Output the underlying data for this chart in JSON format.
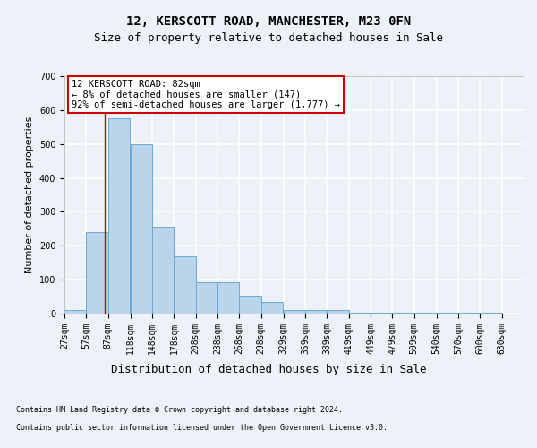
{
  "title1": "12, KERSCOTT ROAD, MANCHESTER, M23 0FN",
  "title2": "Size of property relative to detached houses in Sale",
  "xlabel": "Distribution of detached houses by size in Sale",
  "ylabel": "Number of detached properties",
  "bar_left_edges": [
    27,
    57,
    87,
    118,
    148,
    178,
    208,
    238,
    268,
    298,
    329,
    359,
    389,
    419,
    449,
    479,
    509,
    540,
    570,
    600
  ],
  "bar_heights": [
    10,
    240,
    575,
    500,
    255,
    170,
    92,
    92,
    52,
    35,
    10,
    10,
    10,
    3,
    3,
    3,
    3,
    3,
    3,
    3
  ],
  "bin_width": 30,
  "bar_color": "#bad4ec",
  "bar_edge_color": "#6aaad4",
  "vline_x": 82,
  "vline_color": "#cc0000",
  "annotation_lines": [
    "12 KERSCOTT ROAD: 82sqm",
    "← 8% of detached houses are smaller (147)",
    "92% of semi-detached houses are larger (1,777) →"
  ],
  "annotation_box_color": "#ffffff",
  "annotation_box_edge": "#cc0000",
  "footer1": "Contains HM Land Registry data © Crown copyright and database right 2024.",
  "footer2": "Contains public sector information licensed under the Open Government Licence v3.0.",
  "xlim": [
    27,
    660
  ],
  "ylim": [
    0,
    700
  ],
  "yticks": [
    0,
    100,
    200,
    300,
    400,
    500,
    600,
    700
  ],
  "xtick_labels": [
    "27sqm",
    "57sqm",
    "87sqm",
    "118sqm",
    "148sqm",
    "178sqm",
    "208sqm",
    "238sqm",
    "268sqm",
    "298sqm",
    "329sqm",
    "359sqm",
    "389sqm",
    "419sqm",
    "449sqm",
    "479sqm",
    "509sqm",
    "540sqm",
    "570sqm",
    "600sqm",
    "630sqm"
  ],
  "background_color": "#edf1f8",
  "plot_bg_color": "#edf1f8",
  "grid_color": "#ffffff",
  "title1_fontsize": 10,
  "title2_fontsize": 9,
  "ylabel_fontsize": 8,
  "xlabel_fontsize": 9,
  "tick_fontsize": 7,
  "annot_fontsize": 7.5,
  "footer_fontsize": 6
}
